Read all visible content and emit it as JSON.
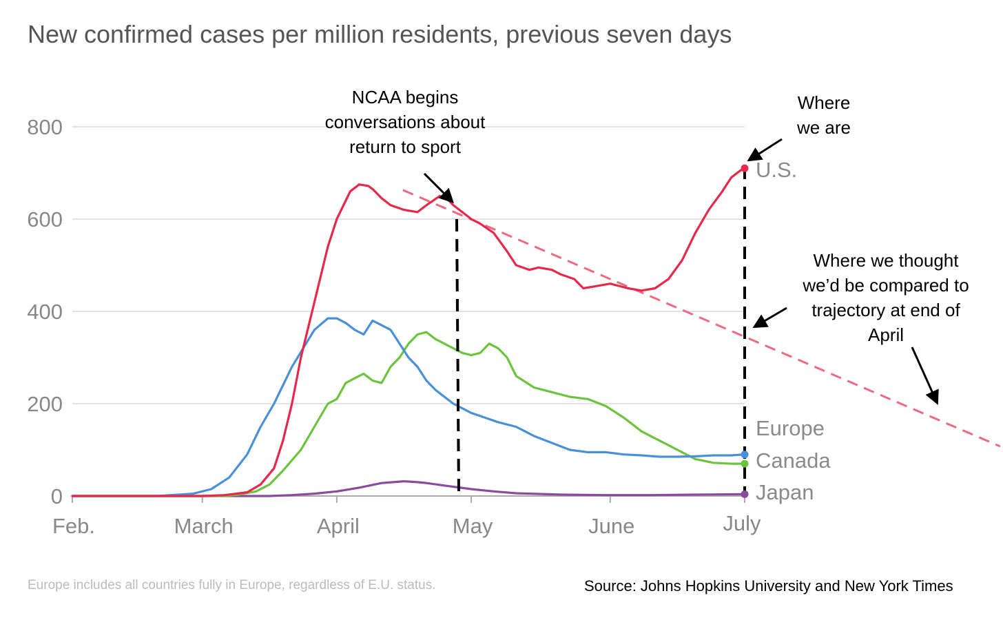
{
  "title": "New confirmed cases per million residents, previous seven days",
  "note": "Europe includes all countries fully in Europe, regardless of E.U. status.",
  "source": "Source: Johns Hopkins University and New York Times",
  "annotations": {
    "ncaa": [
      "NCAA begins",
      "conversations about",
      "return to sport"
    ],
    "where_we_are": [
      "Where",
      "we are"
    ],
    "where_we_thought": [
      "Where we thought",
      "we’d be compared to",
      "trajectory at end of",
      "April"
    ]
  },
  "colors": {
    "us": "#e8284a",
    "europe": "#4a90d9",
    "canada": "#6cc43c",
    "japan": "#8a4aa0",
    "trend": "#ec6a82"
  },
  "chart_data": {
    "type": "line",
    "title": "New confirmed cases per million residents, previous seven days",
    "xlabel": "",
    "ylabel": "",
    "ylim": [
      0,
      800
    ],
    "yticks": [
      0,
      200,
      400,
      600,
      800
    ],
    "x_ticks": [
      "Feb.",
      "March",
      "April",
      "May",
      "June",
      "July"
    ],
    "x_tick_days": [
      1,
      30,
      60,
      90,
      121,
      151
    ],
    "x_unit": "day of year 2020 (Feb. 1 = day 1)",
    "grid": true,
    "series": [
      {
        "name": "U.S.",
        "color_key": "us",
        "x": [
          1,
          30,
          35,
          40,
          43,
          46,
          48,
          50,
          52,
          55,
          58,
          60,
          63,
          65,
          67,
          68,
          70,
          72,
          75,
          78,
          80,
          83,
          85,
          86,
          88,
          90,
          92,
          95,
          98,
          100,
          103,
          105,
          108,
          110,
          113,
          115,
          118,
          121,
          125,
          128,
          131,
          134,
          137,
          140,
          143,
          146,
          148,
          150,
          151
        ],
        "values": [
          0,
          0,
          2,
          8,
          25,
          60,
          120,
          200,
          300,
          420,
          540,
          600,
          660,
          675,
          672,
          665,
          645,
          630,
          620,
          615,
          630,
          650,
          640,
          630,
          615,
          600,
          590,
          570,
          530,
          500,
          490,
          495,
          490,
          480,
          470,
          450,
          455,
          460,
          450,
          445,
          450,
          470,
          510,
          570,
          620,
          660,
          690,
          705,
          710
        ]
      },
      {
        "name": "Europe",
        "color_key": "europe",
        "x": [
          1,
          20,
          28,
          32,
          36,
          40,
          43,
          46,
          50,
          55,
          58,
          60,
          62,
          64,
          66,
          68,
          70,
          72,
          74,
          76,
          78,
          80,
          82,
          84,
          86,
          88,
          90,
          93,
          96,
          100,
          104,
          108,
          112,
          116,
          120,
          124,
          128,
          132,
          136,
          140,
          144,
          148,
          151
        ],
        "values": [
          0,
          0,
          5,
          15,
          40,
          90,
          150,
          200,
          280,
          360,
          385,
          385,
          375,
          360,
          350,
          380,
          370,
          360,
          330,
          300,
          280,
          250,
          230,
          215,
          200,
          190,
          180,
          170,
          160,
          150,
          130,
          115,
          100,
          95,
          95,
          90,
          88,
          85,
          85,
          86,
          88,
          88,
          90
        ]
      },
      {
        "name": "Canada",
        "color_key": "canada",
        "x": [
          1,
          35,
          38,
          42,
          45,
          48,
          52,
          55,
          58,
          60,
          62,
          64,
          66,
          68,
          70,
          72,
          74,
          76,
          78,
          80,
          82,
          84,
          86,
          88,
          90,
          92,
          94,
          96,
          98,
          100,
          104,
          108,
          112,
          116,
          120,
          124,
          128,
          132,
          136,
          140,
          144,
          148,
          151
        ],
        "values": [
          0,
          0,
          3,
          10,
          25,
          55,
          100,
          150,
          200,
          210,
          245,
          255,
          265,
          250,
          245,
          280,
          300,
          330,
          350,
          355,
          340,
          330,
          320,
          310,
          305,
          310,
          330,
          320,
          300,
          260,
          235,
          225,
          215,
          210,
          195,
          170,
          140,
          120,
          100,
          80,
          72,
          70,
          70
        ]
      },
      {
        "name": "Japan",
        "color_key": "japan",
        "x": [
          1,
          45,
          50,
          55,
          60,
          65,
          70,
          75,
          78,
          80,
          83,
          86,
          90,
          95,
          100,
          110,
          120,
          130,
          140,
          151
        ],
        "values": [
          0,
          0,
          2,
          5,
          10,
          18,
          28,
          32,
          30,
          28,
          24,
          20,
          15,
          10,
          6,
          3,
          2,
          2,
          3,
          4
        ]
      }
    ]
  }
}
